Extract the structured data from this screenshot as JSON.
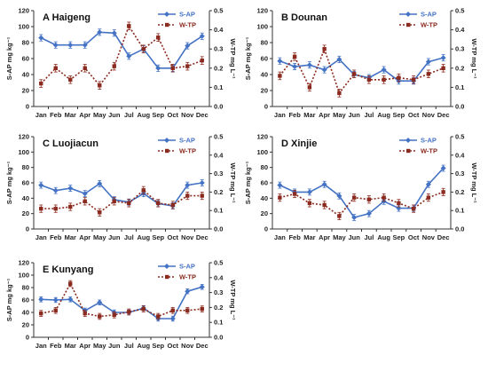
{
  "chart_data": [
    {
      "type": "line",
      "title": "A  Haigeng",
      "categories": [
        "Jan",
        "Feb",
        "Mar",
        "Apr",
        "May",
        "Jun",
        "Jul",
        "Aug",
        "Sep",
        "Oct",
        "Nov",
        "Dec"
      ],
      "ylabel": "S-AP mg kg⁻¹",
      "y2label": "W-TP mg L⁻¹",
      "ylim": [
        0,
        120
      ],
      "y2lim": [
        0,
        0.5
      ],
      "yticks": [
        "0",
        "20",
        "40",
        "60",
        "80",
        "100",
        "120"
      ],
      "y2ticks": [
        "0.0",
        "0.1",
        "0.2",
        "0.3",
        "0.4",
        "0.5"
      ],
      "legend_position": "top-right",
      "series": [
        {
          "name": "S-AP",
          "axis": "left",
          "color": "#4472c4",
          "values": [
            86,
            77,
            77,
            77,
            93,
            92,
            63,
            72,
            48,
            48,
            76,
            88
          ]
        },
        {
          "name": "W-TP",
          "axis": "right",
          "color": "#8b2a1e",
          "values": [
            0.12,
            0.2,
            0.14,
            0.2,
            0.11,
            0.21,
            0.42,
            0.3,
            0.36,
            0.2,
            0.21,
            0.24
          ]
        }
      ]
    },
    {
      "type": "line",
      "title": "B  Dounan",
      "categories": [
        "Jan",
        "Feb",
        "Mar",
        "Apr",
        "May",
        "Jun",
        "Jul",
        "Aug",
        "Sep",
        "Oct",
        "Nov",
        "Dec"
      ],
      "ylabel": "S-AP mg kg⁻¹",
      "y2label": "W-TP mg L⁻¹",
      "ylim": [
        0,
        120
      ],
      "y2lim": [
        0,
        0.5
      ],
      "yticks": [
        "0",
        "20",
        "40",
        "60",
        "80",
        "100",
        "120"
      ],
      "y2ticks": [
        "0.0",
        "0.1",
        "0.2",
        "0.3",
        "0.4",
        "0.5"
      ],
      "legend_position": "top-right",
      "series": [
        {
          "name": "S-AP",
          "axis": "left",
          "color": "#4472c4",
          "values": [
            57,
            50,
            52,
            46,
            59,
            40,
            36,
            46,
            32,
            32,
            56,
            61
          ]
        },
        {
          "name": "W-TP",
          "axis": "right",
          "color": "#8b2a1e",
          "values": [
            0.16,
            0.26,
            0.1,
            0.3,
            0.07,
            0.17,
            0.14,
            0.14,
            0.15,
            0.14,
            0.17,
            0.2
          ]
        }
      ]
    },
    {
      "type": "line",
      "title": "C  Luojiacun",
      "categories": [
        "Jan",
        "Feb",
        "Mar",
        "Apr",
        "May",
        "Jun",
        "Jul",
        "Aug",
        "Sep",
        "Oct",
        "Nov",
        "Dec"
      ],
      "ylabel": "S-AP mg kg⁻¹",
      "y2label": "W-TP mg L⁻¹",
      "ylim": [
        0,
        120
      ],
      "y2lim": [
        0,
        0.5
      ],
      "yticks": [
        "0",
        "20",
        "40",
        "60",
        "80",
        "100",
        "120"
      ],
      "y2ticks": [
        "0.0",
        "0.1",
        "0.2",
        "0.3",
        "0.4",
        "0.5"
      ],
      "legend_position": "top-right",
      "series": [
        {
          "name": "S-AP",
          "axis": "left",
          "color": "#4472c4",
          "values": [
            57,
            50,
            53,
            46,
            59,
            38,
            35,
            46,
            33,
            30,
            57,
            60
          ]
        },
        {
          "name": "W-TP",
          "axis": "right",
          "color": "#8b2a1e",
          "values": [
            0.11,
            0.11,
            0.12,
            0.15,
            0.09,
            0.15,
            0.14,
            0.21,
            0.14,
            0.13,
            0.18,
            0.18
          ]
        }
      ]
    },
    {
      "type": "line",
      "title": "D  Xinjie",
      "categories": [
        "Jan",
        "Feb",
        "Mar",
        "Apr",
        "May",
        "Jun",
        "Jul",
        "Aug",
        "Sep",
        "Oct",
        "Nov",
        "Dec"
      ],
      "ylabel": "S-AP mg kg⁻¹",
      "y2label": "W-TP mg L⁻¹",
      "ylim": [
        0,
        120
      ],
      "y2lim": [
        0,
        0.5
      ],
      "yticks": [
        "0",
        "20",
        "40",
        "60",
        "80",
        "100",
        "120"
      ],
      "y2ticks": [
        "0.0",
        "0.1",
        "0.2",
        "0.3",
        "0.4",
        "0.5"
      ],
      "legend_position": "top-right",
      "series": [
        {
          "name": "S-AP",
          "axis": "left",
          "color": "#4472c4",
          "values": [
            57,
            48,
            48,
            58,
            43,
            15,
            20,
            36,
            27,
            27,
            58,
            79
          ]
        },
        {
          "name": "W-TP",
          "axis": "right",
          "color": "#8b2a1e",
          "values": [
            0.17,
            0.19,
            0.14,
            0.13,
            0.07,
            0.17,
            0.16,
            0.17,
            0.14,
            0.11,
            0.17,
            0.2
          ]
        }
      ]
    },
    {
      "type": "line",
      "title": "E  Kunyang",
      "categories": [
        "Jan",
        "Feb",
        "Mar",
        "Apr",
        "May",
        "Jun",
        "Jul",
        "Aug",
        "Sep",
        "Oct",
        "Nov",
        "Dec"
      ],
      "ylabel": "S-AP mg kg⁻¹",
      "y2label": "W-TP mg L⁻¹",
      "ylim": [
        0,
        120
      ],
      "y2lim": [
        0,
        0.5
      ],
      "yticks": [
        "0",
        "20",
        "40",
        "60",
        "80",
        "100",
        "120"
      ],
      "y2ticks": [
        "0.0",
        "0.1",
        "0.2",
        "0.3",
        "0.4",
        "0.5"
      ],
      "legend_position": "top-right",
      "series": [
        {
          "name": "S-AP",
          "axis": "left",
          "color": "#4472c4",
          "values": [
            61,
            60,
            61,
            43,
            56,
            40,
            40,
            47,
            30,
            30,
            74,
            81
          ]
        },
        {
          "name": "W-TP",
          "axis": "right",
          "color": "#8b2a1e",
          "values": [
            0.16,
            0.18,
            0.36,
            0.16,
            0.14,
            0.15,
            0.17,
            0.19,
            0.14,
            0.18,
            0.18,
            0.19
          ]
        }
      ]
    }
  ]
}
